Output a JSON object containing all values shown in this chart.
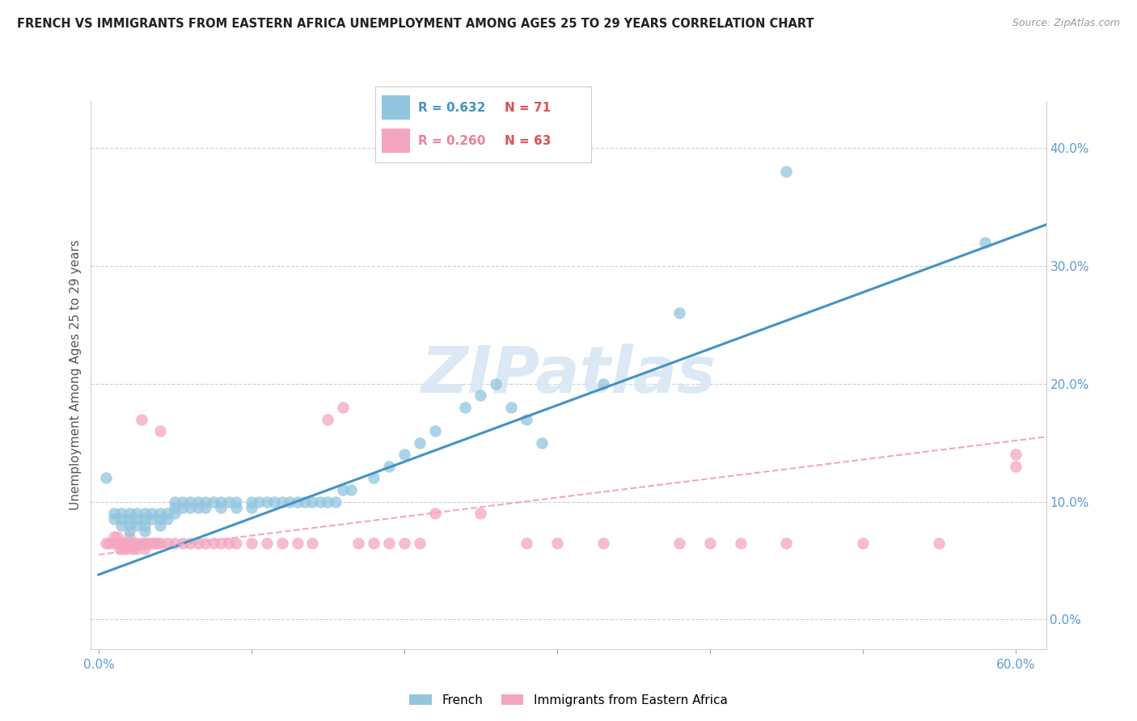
{
  "title": "FRENCH VS IMMIGRANTS FROM EASTERN AFRICA UNEMPLOYMENT AMONG AGES 25 TO 29 YEARS CORRELATION CHART",
  "source": "Source: ZipAtlas.com",
  "ylabel": "Unemployment Among Ages 25 to 29 years",
  "xlabel_ticks": [
    "0.0%",
    "",
    "",
    "",
    "",
    "",
    "60.0%"
  ],
  "xlabel_vals": [
    0.0,
    0.1,
    0.2,
    0.3,
    0.4,
    0.5,
    0.6
  ],
  "ylabel_ticks_right": [
    "0.0%",
    "10.0%",
    "20.0%",
    "30.0%",
    "40.0%"
  ],
  "ylabel_vals": [
    0.0,
    0.1,
    0.2,
    0.3,
    0.4
  ],
  "xlim": [
    -0.005,
    0.62
  ],
  "ylim": [
    -0.025,
    0.44
  ],
  "legend_french_R": "R = 0.632",
  "legend_french_N": "N = 71",
  "legend_immig_R": "R = 0.260",
  "legend_immig_N": "N = 63",
  "french_color": "#92c5de",
  "immig_color": "#f4a6c0",
  "french_line_color": "#4393c3",
  "immig_line_color": "#f4a6c0",
  "watermark": "ZIPatlas",
  "watermark_color": "#dce9f5",
  "background_color": "#ffffff",
  "title_fontsize": 10.5,
  "source_fontsize": 9,
  "french_scatter_x": [
    0.005,
    0.01,
    0.01,
    0.015,
    0.015,
    0.015,
    0.02,
    0.02,
    0.02,
    0.02,
    0.025,
    0.025,
    0.025,
    0.03,
    0.03,
    0.03,
    0.03,
    0.035,
    0.035,
    0.04,
    0.04,
    0.04,
    0.045,
    0.045,
    0.05,
    0.05,
    0.05,
    0.055,
    0.055,
    0.06,
    0.06,
    0.065,
    0.065,
    0.07,
    0.07,
    0.075,
    0.08,
    0.08,
    0.085,
    0.09,
    0.09,
    0.1,
    0.1,
    0.105,
    0.11,
    0.115,
    0.12,
    0.125,
    0.13,
    0.135,
    0.14,
    0.145,
    0.15,
    0.155,
    0.16,
    0.165,
    0.18,
    0.19,
    0.2,
    0.21,
    0.22,
    0.24,
    0.25,
    0.26,
    0.27,
    0.28,
    0.29,
    0.33,
    0.38,
    0.45,
    0.58
  ],
  "french_scatter_y": [
    0.12,
    0.09,
    0.085,
    0.09,
    0.085,
    0.08,
    0.09,
    0.085,
    0.08,
    0.075,
    0.09,
    0.085,
    0.08,
    0.09,
    0.085,
    0.08,
    0.075,
    0.09,
    0.085,
    0.09,
    0.085,
    0.08,
    0.09,
    0.085,
    0.1,
    0.095,
    0.09,
    0.1,
    0.095,
    0.1,
    0.095,
    0.1,
    0.095,
    0.1,
    0.095,
    0.1,
    0.1,
    0.095,
    0.1,
    0.1,
    0.095,
    0.1,
    0.095,
    0.1,
    0.1,
    0.1,
    0.1,
    0.1,
    0.1,
    0.1,
    0.1,
    0.1,
    0.1,
    0.1,
    0.11,
    0.11,
    0.12,
    0.13,
    0.14,
    0.15,
    0.16,
    0.18,
    0.19,
    0.2,
    0.18,
    0.17,
    0.15,
    0.2,
    0.26,
    0.38,
    0.32
  ],
  "immig_scatter_x": [
    0.005,
    0.007,
    0.01,
    0.01,
    0.012,
    0.012,
    0.014,
    0.014,
    0.016,
    0.016,
    0.018,
    0.018,
    0.02,
    0.02,
    0.022,
    0.022,
    0.025,
    0.025,
    0.028,
    0.028,
    0.03,
    0.03,
    0.032,
    0.034,
    0.036,
    0.038,
    0.04,
    0.04,
    0.045,
    0.05,
    0.055,
    0.06,
    0.065,
    0.07,
    0.075,
    0.08,
    0.085,
    0.09,
    0.1,
    0.11,
    0.12,
    0.13,
    0.14,
    0.15,
    0.16,
    0.17,
    0.18,
    0.19,
    0.2,
    0.21,
    0.22,
    0.25,
    0.28,
    0.3,
    0.33,
    0.38,
    0.4,
    0.42,
    0.45,
    0.5,
    0.55,
    0.6,
    0.6
  ],
  "immig_scatter_y": [
    0.065,
    0.065,
    0.07,
    0.065,
    0.07,
    0.065,
    0.065,
    0.06,
    0.065,
    0.06,
    0.065,
    0.06,
    0.07,
    0.065,
    0.065,
    0.06,
    0.065,
    0.06,
    0.17,
    0.065,
    0.065,
    0.06,
    0.065,
    0.065,
    0.065,
    0.065,
    0.16,
    0.065,
    0.065,
    0.065,
    0.065,
    0.065,
    0.065,
    0.065,
    0.065,
    0.065,
    0.065,
    0.065,
    0.065,
    0.065,
    0.065,
    0.065,
    0.065,
    0.17,
    0.18,
    0.065,
    0.065,
    0.065,
    0.065,
    0.065,
    0.09,
    0.09,
    0.065,
    0.065,
    0.065,
    0.065,
    0.065,
    0.065,
    0.065,
    0.065,
    0.065,
    0.13,
    0.14
  ],
  "french_line_x": [
    0.0,
    0.62
  ],
  "french_line_y": [
    0.038,
    0.335
  ],
  "immig_line_x": [
    0.0,
    0.62
  ],
  "immig_line_y": [
    0.055,
    0.155
  ]
}
